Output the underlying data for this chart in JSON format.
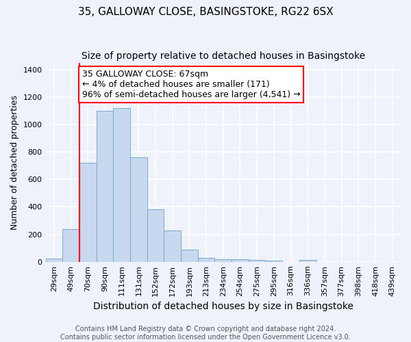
{
  "title": "35, GALLOWAY CLOSE, BASINGSTOKE, RG22 6SX",
  "subtitle": "Size of property relative to detached houses in Basingstoke",
  "xlabel": "Distribution of detached houses by size in Basingstoke",
  "ylabel": "Number of detached properties",
  "categories": [
    "29sqm",
    "49sqm",
    "70sqm",
    "90sqm",
    "111sqm",
    "131sqm",
    "152sqm",
    "172sqm",
    "193sqm",
    "213sqm",
    "234sqm",
    "254sqm",
    "275sqm",
    "295sqm",
    "316sqm",
    "336sqm",
    "357sqm",
    "377sqm",
    "398sqm",
    "418sqm",
    "439sqm"
  ],
  "bar_heights": [
    25,
    240,
    720,
    1100,
    1120,
    760,
    380,
    230,
    90,
    28,
    20,
    20,
    12,
    8,
    0,
    12,
    0,
    0,
    0,
    0,
    0
  ],
  "bar_color": "#c8d8ee",
  "bar_edge_color": "#7aaad0",
  "highlight_bar_index": 2,
  "annotation_text": "35 GALLOWAY CLOSE: 67sqm\n← 4% of detached houses are smaller (171)\n96% of semi-detached houses are larger (4,541) →",
  "annotation_box_color": "white",
  "annotation_box_edge_color": "red",
  "ylim": [
    0,
    1450
  ],
  "yticks": [
    0,
    200,
    400,
    600,
    800,
    1000,
    1200,
    1400
  ],
  "vline_color": "red",
  "footer_text": "Contains HM Land Registry data © Crown copyright and database right 2024.\nContains public sector information licensed under the Open Government Licence v3.0.",
  "background_color": "#eef2fa",
  "grid_color": "white",
  "title_fontsize": 11,
  "subtitle_fontsize": 10,
  "annotation_fontsize": 9,
  "tick_fontsize": 8,
  "ylabel_fontsize": 9,
  "xlabel_fontsize": 10,
  "footer_fontsize": 7
}
